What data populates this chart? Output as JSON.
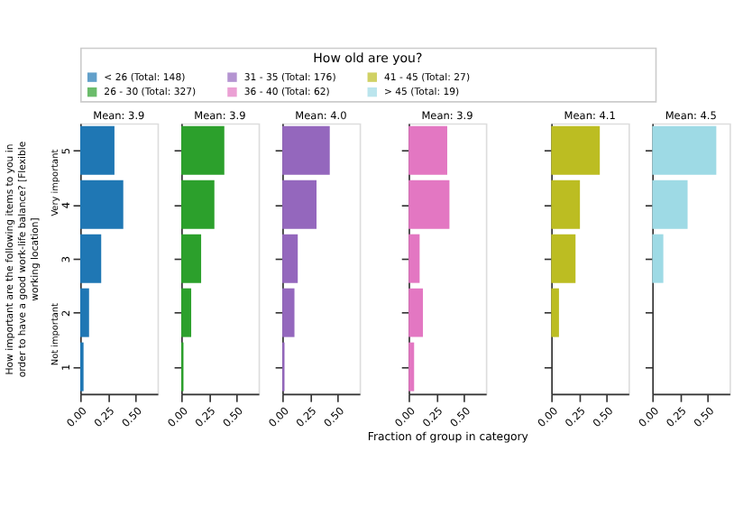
{
  "chart_data": [
    {
      "type": "bar",
      "orientation": "horizontal",
      "title": "Mean: 3.9",
      "legend_title": "How old are you?",
      "legend": "top",
      "ylabel": "How important are the following items to you in order to have a good work-life balance? [Flexible working location]",
      "annotations": [
        "Very important",
        "Not important"
      ],
      "categories": [
        "5",
        "4",
        "3",
        "2",
        "1"
      ],
      "xlim": [
        0,
        0.7
      ],
      "xticks": [
        {
          "value": 0,
          "label": "0.00"
        },
        {
          "value": 0.25,
          "label": "0.25"
        },
        {
          "value": 0.5,
          "label": "0.50"
        }
      ],
      "grid": false,
      "series": [
        {
          "name": "< 26 (Total: 148)",
          "color": "#1f77b4",
          "values": [
            0.31,
            0.39,
            0.19,
            0.08,
            0.03
          ]
        }
      ]
    },
    {
      "type": "bar",
      "orientation": "horizontal",
      "title": "Mean: 3.9",
      "categories": [
        "5",
        "4",
        "3",
        "2",
        "1"
      ],
      "xlim": [
        0,
        0.7
      ],
      "xticks": [
        {
          "value": 0,
          "label": "0.00"
        },
        {
          "value": 0.25,
          "label": "0.25"
        },
        {
          "value": 0.5,
          "label": "0.50"
        }
      ],
      "grid": false,
      "tick_labels": "x",
      "series": [
        {
          "name": "26 - 30 (Total: 327)",
          "color": "#2ca02c",
          "values": [
            0.39,
            0.3,
            0.18,
            0.09,
            0.02
          ]
        }
      ]
    },
    {
      "type": "bar",
      "orientation": "horizontal",
      "title": "Mean: 4.0",
      "categories": [
        "5",
        "4",
        "3",
        "2",
        "1"
      ],
      "xlim": [
        0,
        0.7
      ],
      "xticks": [
        {
          "value": 0,
          "label": "0.00"
        },
        {
          "value": 0.25,
          "label": "0.25"
        },
        {
          "value": 0.5,
          "label": "0.50"
        }
      ],
      "grid": false,
      "tick_labels": "x",
      "series": [
        {
          "name": "31 - 35 (Total: 176)",
          "color": "#9467bd",
          "values": [
            0.43,
            0.31,
            0.14,
            0.11,
            0.02
          ]
        }
      ]
    },
    {
      "type": "bar",
      "orientation": "horizontal",
      "title": "Mean: 3.9",
      "xlabel": "Fraction of group in category",
      "categories": [
        "5",
        "4",
        "3",
        "2",
        "1"
      ],
      "xlim": [
        0,
        0.7
      ],
      "xticks": [
        {
          "value": 0,
          "label": "0.00"
        },
        {
          "value": 0.25,
          "label": "0.25"
        },
        {
          "value": 0.5,
          "label": "0.50"
        }
      ],
      "grid": false,
      "tick_labels": "x",
      "series": [
        {
          "name": "36 - 40 (Total: 62)",
          "color": "#e377c2",
          "values": [
            0.35,
            0.37,
            0.1,
            0.13,
            0.05
          ]
        }
      ]
    },
    {
      "type": "bar",
      "orientation": "horizontal",
      "title": "Mean: 4.1",
      "categories": [
        "5",
        "4",
        "3",
        "2",
        "1"
      ],
      "xlim": [
        0,
        0.7
      ],
      "xticks": [
        {
          "value": 0,
          "label": "0.00"
        },
        {
          "value": 0.25,
          "label": "0.25"
        },
        {
          "value": 0.5,
          "label": "0.50"
        }
      ],
      "grid": false,
      "tick_labels": "x",
      "series": [
        {
          "name": "41 - 45 (Total: 27)",
          "color": "#bcbd22",
          "values": [
            0.44,
            0.26,
            0.22,
            0.07,
            0
          ]
        }
      ]
    },
    {
      "type": "bar",
      "orientation": "horizontal",
      "title": "Mean: 4.5",
      "categories": [
        "5",
        "4",
        "3",
        "2",
        "1"
      ],
      "xlim": [
        0,
        0.7
      ],
      "xticks": [
        {
          "value": 0,
          "label": "0.00"
        },
        {
          "value": 0.25,
          "label": "0.25"
        },
        {
          "value": 0.5,
          "label": "0.50"
        }
      ],
      "grid": false,
      "tick_labels": "x",
      "series": [
        {
          "name": "> 45 (Total: 19)",
          "color": "#9edae5",
          "values": [
            0.58,
            0.32,
            0.1,
            0,
            0
          ]
        }
      ]
    }
  ]
}
